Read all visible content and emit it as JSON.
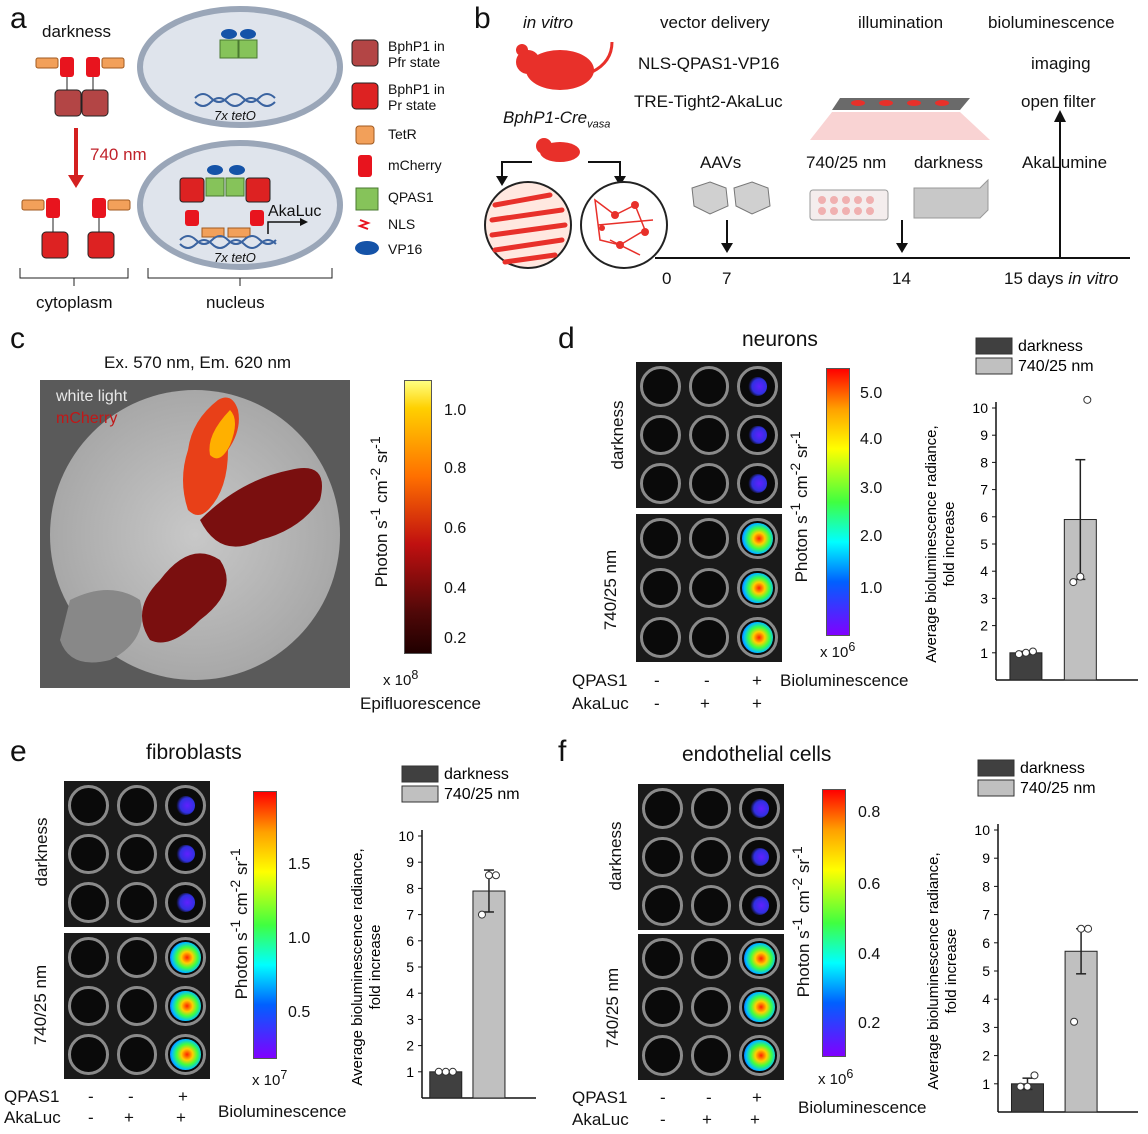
{
  "panel_labels": {
    "a": "a",
    "b": "b",
    "c": "c",
    "d": "d",
    "e": "e",
    "f": "f"
  },
  "panel_a": {
    "darkness": "darkness",
    "light": "740 nm",
    "tetO_top": "7x tetO",
    "tetO_bottom": "7x tetO",
    "akaluc": "AkaLuc",
    "cytoplasm": "cytoplasm",
    "nucleus": "nucleus",
    "legend": [
      {
        "label": "BphP1 in\nPfr state",
        "color": "#b34545"
      },
      {
        "label": "BphP1 in\nPr state",
        "color": "#dd2222"
      },
      {
        "label": "TetR",
        "color": "#f2a05a"
      },
      {
        "label": "mCherry",
        "color": "#e8141e"
      },
      {
        "label": "QPAS1",
        "color": "#86c35a"
      },
      {
        "label": "NLS",
        "color": "#e8141e"
      },
      {
        "label": "VP16",
        "color": "#1553a8"
      }
    ]
  },
  "panel_b": {
    "in_vitro": "in vitro",
    "mouse_strain": "BphP1-Cre",
    "mouse_sub": "vasa",
    "col_vector": "vector delivery",
    "col_illum": "illumination",
    "col_biolum": "bioluminescence",
    "vector1": "NLS-QPAS1-VP16",
    "vector2": "TRE-Tight2-AkaLuc",
    "imaging": "imaging",
    "open_filter": "open filter",
    "aavs": "AAVs",
    "wavelength": "740/25 nm",
    "darkness": "darkness",
    "akalumine": "AkaLumine",
    "timeline": [
      "0",
      "7",
      "14"
    ],
    "timeline_end": "15 days",
    "timeline_end_ital": "in vitro"
  },
  "panel_c": {
    "title": "Ex. 570 nm, Em. 620 nm",
    "white_light": "white light",
    "mcherry": "mCherry",
    "scale_ticks": [
      "1.0",
      "0.8",
      "0.6",
      "0.4",
      "0.2"
    ],
    "scale_unit": "x 10",
    "scale_exp": "8",
    "scale_label": "Photon s-1 cm-2 sr-1",
    "caption": "Epifluorescence"
  },
  "panel_d": {
    "title": "neurons",
    "row_dark": "darkness",
    "row_light": "740/25 nm",
    "scale_ticks": [
      "5.0",
      "4.0",
      "3.0",
      "2.0",
      "1.0"
    ],
    "scale_unit": "x 10",
    "scale_exp": "6",
    "scale_label": "Photon s-1 cm-2 sr-1",
    "qpas1": "QPAS1",
    "akaluc": "AkaLuc",
    "qpas1_signs": [
      "-",
      "-",
      "+"
    ],
    "akaluc_signs": [
      "-",
      "+",
      "+"
    ],
    "caption": "Bioluminescence"
  },
  "panel_e": {
    "title": "fibroblasts",
    "row_dark": "darkness",
    "row_light": "740/25 nm",
    "scale_ticks": [
      "1.5",
      "1.0",
      "0.5"
    ],
    "scale_unit": "x 10",
    "scale_exp": "7",
    "scale_label": "Photon s-1 cm-2 sr-1",
    "qpas1": "QPAS1",
    "akaluc": "AkaLuc",
    "qpas1_signs": [
      "-",
      "-",
      "+"
    ],
    "akaluc_signs": [
      "-",
      "+",
      "+"
    ],
    "caption": "Bioluminescence"
  },
  "panel_f": {
    "title": "endothelial cells",
    "row_dark": "darkness",
    "row_light": "740/25 nm",
    "scale_ticks": [
      "0.8",
      "0.6",
      "0.4",
      "0.2"
    ],
    "scale_unit": "x 10",
    "scale_exp": "6",
    "scale_label": "Photon s-1 cm-2 sr-1",
    "qpas1": "QPAS1",
    "akaluc": "AkaLuc",
    "qpas1_signs": [
      "-",
      "-",
      "+"
    ],
    "akaluc_signs": [
      "-",
      "+",
      "+"
    ],
    "caption": "Bioluminescence"
  },
  "chart_data": [
    {
      "type": "bar",
      "panel": "d",
      "categories": [
        "darkness",
        "740/25 nm"
      ],
      "values": [
        1.0,
        5.9
      ],
      "errors": [
        0.05,
        2.2
      ],
      "points": [
        [
          0.95,
          1.0,
          1.05
        ],
        [
          3.6,
          3.8,
          10.3
        ]
      ],
      "colors": [
        "#404040",
        "#c0c0c0"
      ],
      "ylabel": "Average bioluminescence radiance, fold increase",
      "ylim": [
        0,
        10
      ],
      "yticks": [
        "1",
        "2",
        "3",
        "4",
        "5",
        "6",
        "7",
        "8",
        "9",
        "10"
      ],
      "legend": [
        "darkness",
        "740/25 nm"
      ]
    },
    {
      "type": "bar",
      "panel": "e",
      "categories": [
        "darkness",
        "740/25 nm"
      ],
      "values": [
        1.0,
        7.9
      ],
      "errors": [
        0.03,
        0.8
      ],
      "points": [
        [
          1.0,
          1.0,
          1.0
        ],
        [
          7.0,
          8.5,
          8.5
        ]
      ],
      "colors": [
        "#404040",
        "#c0c0c0"
      ],
      "ylabel": "Average bioluminescence radiance, fold increase",
      "ylim": [
        0,
        10
      ],
      "yticks": [
        "1",
        "2",
        "3",
        "4",
        "5",
        "6",
        "7",
        "8",
        "9",
        "10"
      ],
      "legend": [
        "darkness",
        "740/25 nm"
      ]
    },
    {
      "type": "bar",
      "panel": "f",
      "categories": [
        "darkness",
        "740/25 nm"
      ],
      "values": [
        1.0,
        5.7
      ],
      "errors": [
        0.2,
        0.8
      ],
      "points": [
        [
          0.9,
          0.9,
          1.3
        ],
        [
          3.2,
          6.5,
          6.5
        ]
      ],
      "colors": [
        "#404040",
        "#c0c0c0"
      ],
      "ylabel": "Average bioluminescence radiance, fold increase",
      "ylim": [
        0,
        10
      ],
      "yticks": [
        "1",
        "2",
        "3",
        "4",
        "5",
        "6",
        "7",
        "8",
        "9",
        "10"
      ],
      "legend": [
        "darkness",
        "740/25 nm"
      ]
    }
  ]
}
